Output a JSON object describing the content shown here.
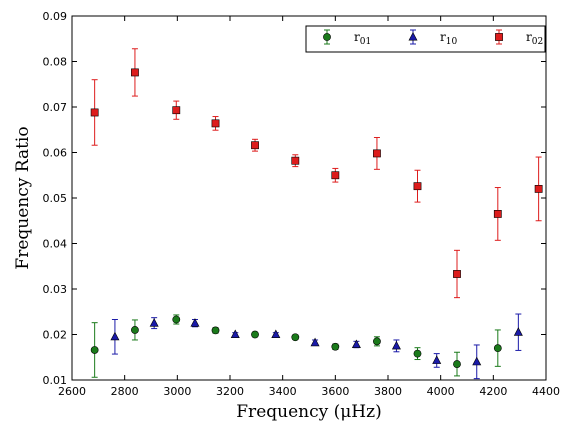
{
  "chart_data": {
    "type": "scatter",
    "xlabel": "Frequency  (μHz)",
    "ylabel": "Frequency Ratio",
    "xlim": [
      2600,
      4400
    ],
    "ylim": [
      0.01,
      0.09
    ],
    "x_ticks": [
      "2600",
      "2800",
      "3000",
      "3200",
      "3400",
      "3600",
      "3800",
      "4000",
      "4200",
      "4400"
    ],
    "y_ticks": [
      "0.01",
      "0.02",
      "0.03",
      "0.04",
      "0.05",
      "0.06",
      "0.07",
      "0.08",
      "0.09"
    ],
    "grid": false,
    "legend_position": "top-right",
    "series": [
      {
        "name": "r01",
        "name_base": "r",
        "name_sub": "01",
        "color": "#1a7a1a",
        "marker": "circle",
        "points": [
          {
            "x": 2686,
            "y": 0.0166,
            "err": 0.006
          },
          {
            "x": 2839,
            "y": 0.021,
            "err": 0.0022
          },
          {
            "x": 2996,
            "y": 0.0233,
            "err": 0.001
          },
          {
            "x": 3145,
            "y": 0.0209,
            "err": 0.0006
          },
          {
            "x": 3295,
            "y": 0.02,
            "err": 0.0005
          },
          {
            "x": 3448,
            "y": 0.0194,
            "err": 0.0005
          },
          {
            "x": 3600,
            "y": 0.0173,
            "err": 0.0006
          },
          {
            "x": 3758,
            "y": 0.0185,
            "err": 0.001
          },
          {
            "x": 3912,
            "y": 0.0158,
            "err": 0.0013
          },
          {
            "x": 4062,
            "y": 0.0135,
            "err": 0.0026
          },
          {
            "x": 4217,
            "y": 0.017,
            "err": 0.004
          }
        ]
      },
      {
        "name": "r10",
        "name_base": "r",
        "name_sub": "10",
        "color": "#1a1aa8",
        "marker": "triangle",
        "points": [
          {
            "x": 2763,
            "y": 0.0195,
            "err": 0.0038
          },
          {
            "x": 2912,
            "y": 0.0225,
            "err": 0.0012
          },
          {
            "x": 3067,
            "y": 0.0225,
            "err": 0.0008
          },
          {
            "x": 3220,
            "y": 0.02,
            "err": 0.0004
          },
          {
            "x": 3374,
            "y": 0.02,
            "err": 0.0004
          },
          {
            "x": 3523,
            "y": 0.0182,
            "err": 0.0006
          },
          {
            "x": 3680,
            "y": 0.0178,
            "err": 0.0007
          },
          {
            "x": 3832,
            "y": 0.0175,
            "err": 0.0013
          },
          {
            "x": 3985,
            "y": 0.0143,
            "err": 0.0015
          },
          {
            "x": 4137,
            "y": 0.014,
            "err": 0.0037
          },
          {
            "x": 4295,
            "y": 0.0205,
            "err": 0.004
          }
        ]
      },
      {
        "name": "r02",
        "name_base": "r",
        "name_sub": "02",
        "color": "#dd1c1c",
        "marker": "square",
        "points": [
          {
            "x": 2686,
            "y": 0.0688,
            "err": 0.0072
          },
          {
            "x": 2839,
            "y": 0.0776,
            "err": 0.0052
          },
          {
            "x": 2996,
            "y": 0.0693,
            "err": 0.002
          },
          {
            "x": 3145,
            "y": 0.0664,
            "err": 0.0015
          },
          {
            "x": 3295,
            "y": 0.0616,
            "err": 0.0013
          },
          {
            "x": 3448,
            "y": 0.0582,
            "err": 0.0013
          },
          {
            "x": 3600,
            "y": 0.055,
            "err": 0.0015
          },
          {
            "x": 3758,
            "y": 0.0598,
            "err": 0.0035
          },
          {
            "x": 3912,
            "y": 0.0526,
            "err": 0.0035
          },
          {
            "x": 4062,
            "y": 0.0333,
            "err": 0.0052
          },
          {
            "x": 4217,
            "y": 0.0465,
            "err": 0.0058
          },
          {
            "x": 4372,
            "y": 0.052,
            "err": 0.007
          }
        ]
      }
    ]
  }
}
